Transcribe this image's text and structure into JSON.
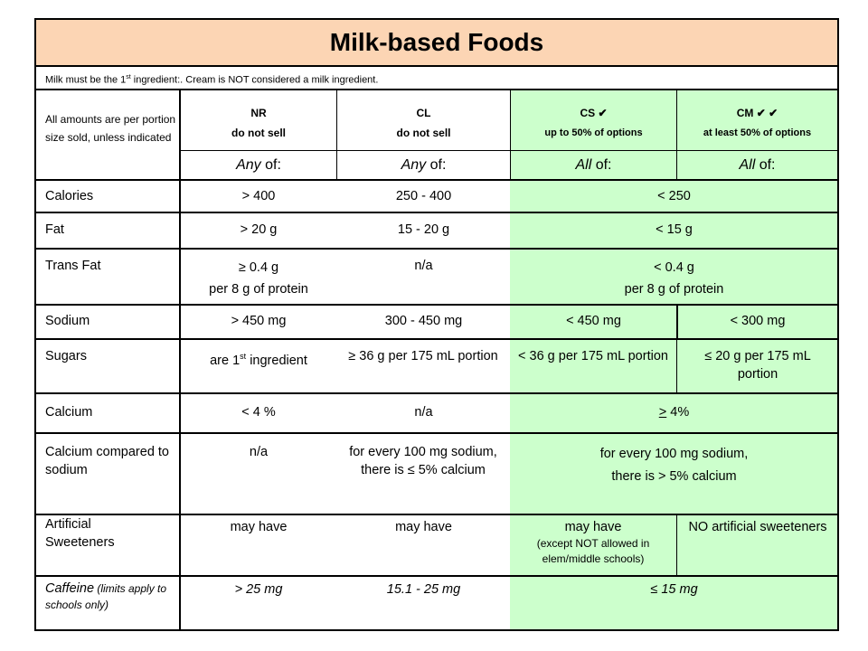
{
  "title": "Milk-based Foods",
  "note": {
    "pre": "Milk must be the 1",
    "sup": "st",
    "post": " ingredient:. Cream is NOT considered a milk ingredient."
  },
  "amounts_note": "All amounts are per portion size sold, unless indicated",
  "columns": [
    {
      "code": "NR",
      "desc": "do not sell",
      "qualifier_word": "Any",
      "qualifier_rest": " of:"
    },
    {
      "code": "CL",
      "desc": "do not sell",
      "qualifier_word": "Any",
      "qualifier_rest": " of:"
    },
    {
      "code": "CS ✔",
      "desc": "up to 50% of options",
      "qualifier_word": "All",
      "qualifier_rest": " of:"
    },
    {
      "code": "CM ✔ ✔",
      "desc": "at least 50% of options",
      "qualifier_word": "All",
      "qualifier_rest": " of:"
    }
  ],
  "rows": {
    "calories": {
      "label": "Calories",
      "nr": "> 400",
      "cl": "250 - 400",
      "cs_cm": "< 250"
    },
    "fat": {
      "label": "Fat",
      "nr": "> 20 g",
      "cl": "15 - 20 g",
      "cs_cm": "< 15 g"
    },
    "trans_fat": {
      "label": "Trans Fat",
      "nr_1": "≥ 0.4 g",
      "nr_2": "per 8 g of protein",
      "cl": "n/a",
      "cs_cm_1": "< 0.4 g",
      "cs_cm_2": "per 8 g of protein"
    },
    "sodium": {
      "label": "Sodium",
      "nr": "> 450 mg",
      "cl": "300 - 450 mg",
      "cs": "< 450 mg",
      "cm": "< 300 mg"
    },
    "sugars": {
      "label": "Sugars",
      "nr_pre": "are 1",
      "nr_sup": "st",
      "nr_post": " ingredient",
      "cl": "≥ 36 g per 175 mL portion",
      "cs": "< 36 g per 175 mL portion",
      "cm": "≤ 20 g per 175 mL portion"
    },
    "calcium": {
      "label": "Calcium",
      "nr": "< 4 %",
      "cl": "n/a",
      "cs_cm_sym": ">",
      "cs_cm_rest": " 4%"
    },
    "calcium_sodium": {
      "label": "Calcium compared to sodium",
      "nr": "n/a",
      "cl": "for every 100 mg sodium, there is ≤ 5% calcium",
      "cs_cm_1": "for every 100 mg sodium,",
      "cs_cm_2": "there is > 5% calcium"
    },
    "sweeteners": {
      "label": "Artificial Sweeteners",
      "nr": "may have",
      "cl": "may have",
      "cs": "may have",
      "cs_note": "(except NOT allowed in elem/middle schools)",
      "cm": "NO artificial sweeteners"
    },
    "caffeine": {
      "label_main": "Caffeine",
      "label_note": " (limits apply to schools only)",
      "nr": "> 25 mg",
      "cl": "15.1 - 25 mg",
      "cs_cm": "≤ 15 mg"
    }
  }
}
